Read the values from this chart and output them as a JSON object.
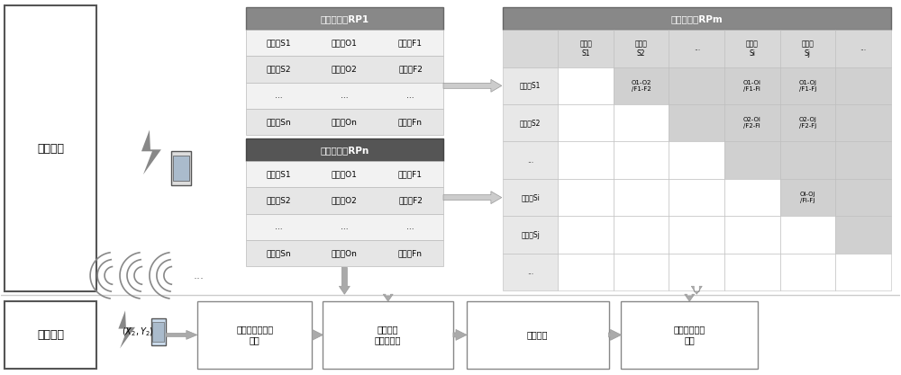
{
  "bg_color": "#ffffff",
  "offline_label": "离线阶段",
  "online_label": "在线阶段",
  "table1_header": "参考位置点RP1",
  "table2_header": "参考位置点RPn",
  "matrix_header": "参考位置点RPm",
  "table_rows": [
    [
      "定位源S1",
      "观测量O1",
      "特征量F1"
    ],
    [
      "定位源S2",
      "观测量O2",
      "特征量F2"
    ],
    [
      "...",
      "...",
      "..."
    ],
    [
      "定位源Sn",
      "观测量On",
      "特征量Fn"
    ]
  ],
  "matrix_col_headers": [
    "定位源\nS1",
    "定位源\nS2",
    "...",
    "定位源\nSi",
    "定位源\nSj",
    "..."
  ],
  "matrix_row_headers": [
    "定位源S1",
    "定位源S2",
    "...",
    "定位源Si",
    "定位源Sj",
    "..."
  ],
  "online_boxes": [
    "在线采集定位源\n信号",
    "定位信号\n差分特征量",
    "匹配算法",
    "定位移动终端\n位置"
  ],
  "online_coord": "$(X_2, Y_2)$",
  "header_gray": "#888888",
  "header_dark": "#555555",
  "row_light": "#f2f2f2",
  "row_mid": "#e6e6e6",
  "matrix_dark": "#c8c8c8",
  "matrix_white": "#ffffff",
  "matrix_light": "#e8e8e8"
}
